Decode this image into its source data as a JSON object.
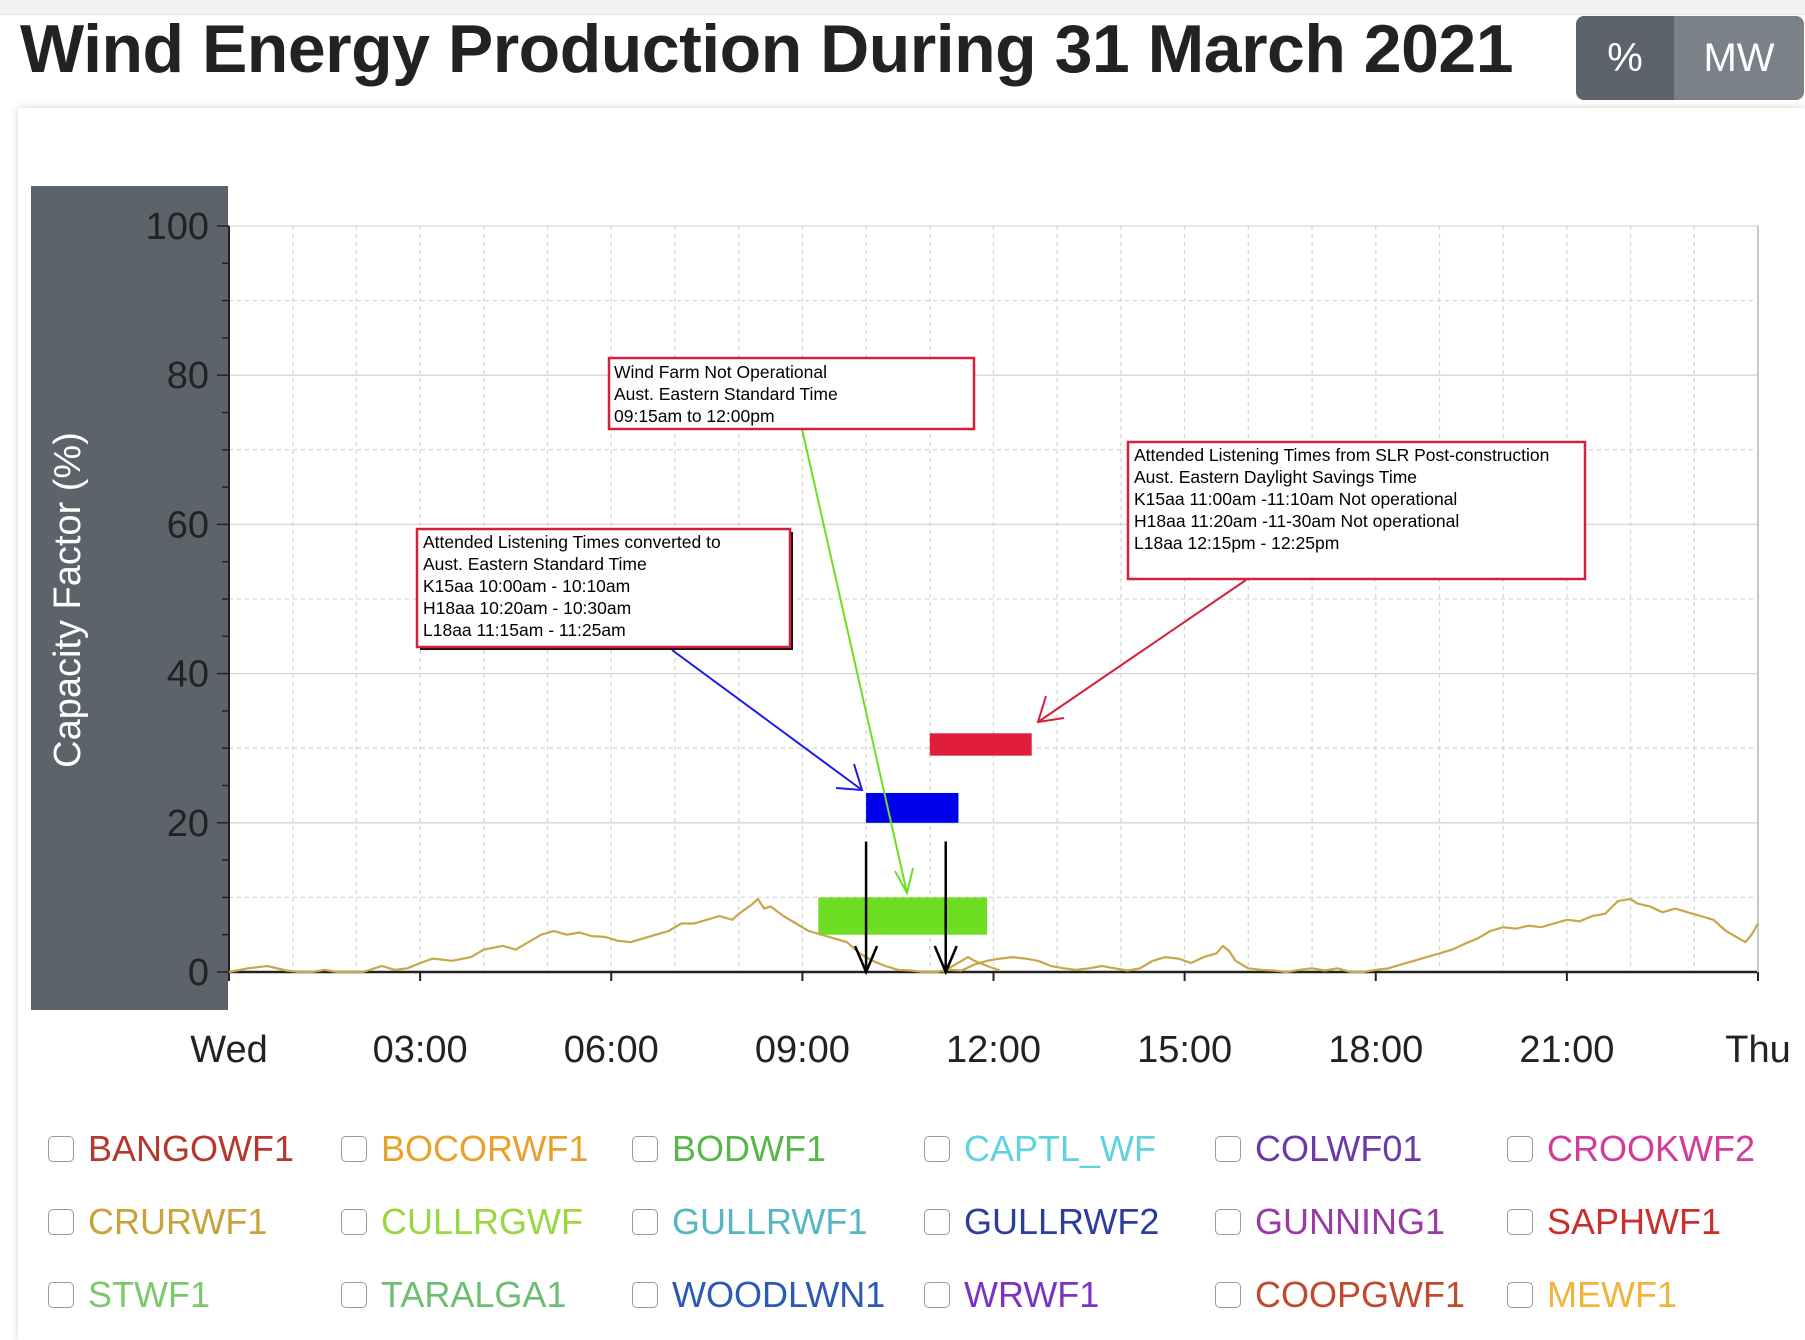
{
  "page": {
    "title": "Wind Energy Production During 31 March 2021",
    "unit_toggle": {
      "percent": "%",
      "mw": "MW",
      "active": "percent"
    }
  },
  "chart_data": {
    "type": "line",
    "title": "Wind Energy Production During 31 March 2021",
    "ylabel": "Capacity Factor (%)",
    "xlabel": "",
    "ylim": [
      0,
      100
    ],
    "y_ticks": [
      0,
      20,
      40,
      60,
      80,
      100
    ],
    "x_ticks": [
      {
        "hour": 0,
        "label": "Wed"
      },
      {
        "hour": 3,
        "label": "03:00"
      },
      {
        "hour": 6,
        "label": "06:00"
      },
      {
        "hour": 9,
        "label": "09:00"
      },
      {
        "hour": 12,
        "label": "12:00"
      },
      {
        "hour": 15,
        "label": "15:00"
      },
      {
        "hour": 18,
        "label": "18:00"
      },
      {
        "hour": 21,
        "label": "21:00"
      },
      {
        "hour": 24,
        "label": "Thu"
      }
    ],
    "grid": true,
    "series": [
      {
        "color": "#c8a64a",
        "points": [
          [
            0,
            0
          ],
          [
            0.3,
            0.5
          ],
          [
            0.6,
            0.8
          ],
          [
            0.9,
            0.2
          ],
          [
            1.1,
            0
          ],
          [
            1.3,
            0
          ],
          [
            1.5,
            0.3
          ],
          [
            1.7,
            0
          ],
          [
            1.9,
            0
          ],
          [
            2.1,
            0
          ],
          [
            2.4,
            0.8
          ],
          [
            2.6,
            0.3
          ],
          [
            2.8,
            0.5
          ],
          [
            3.0,
            1.2
          ],
          [
            3.2,
            1.8
          ],
          [
            3.5,
            1.5
          ],
          [
            3.8,
            2.0
          ],
          [
            4.0,
            3.0
          ],
          [
            4.3,
            3.5
          ],
          [
            4.5,
            3.0
          ],
          [
            4.7,
            4.0
          ],
          [
            4.9,
            5.0
          ],
          [
            5.1,
            5.5
          ],
          [
            5.3,
            5.0
          ],
          [
            5.5,
            5.3
          ],
          [
            5.7,
            4.8
          ],
          [
            5.9,
            4.7
          ],
          [
            6.1,
            4.2
          ],
          [
            6.3,
            4.0
          ],
          [
            6.5,
            4.5
          ],
          [
            6.7,
            5.0
          ],
          [
            6.9,
            5.5
          ],
          [
            7.1,
            6.5
          ],
          [
            7.3,
            6.5
          ],
          [
            7.5,
            7.0
          ],
          [
            7.7,
            7.5
          ],
          [
            7.9,
            7.0
          ],
          [
            8.0,
            7.8
          ],
          [
            8.2,
            9.0
          ],
          [
            8.3,
            9.8
          ],
          [
            8.4,
            8.5
          ],
          [
            8.5,
            8.8
          ],
          [
            8.7,
            7.5
          ],
          [
            8.9,
            6.5
          ],
          [
            9.1,
            5.5
          ],
          [
            9.3,
            5.0
          ],
          [
            9.5,
            4.5
          ],
          [
            9.7,
            4.0
          ],
          [
            9.9,
            2.5
          ],
          [
            10.1,
            1.5
          ],
          [
            10.3,
            0.8
          ],
          [
            10.5,
            0.3
          ],
          [
            10.7,
            0.2
          ],
          [
            10.9,
            0
          ],
          [
            11.1,
            0
          ],
          [
            11.3,
            0.3
          ],
          [
            11.5,
            0.2
          ],
          [
            11.7,
            1.0
          ],
          [
            11.9,
            1.5
          ],
          [
            12.1,
            1.8
          ],
          [
            12.3,
            2.0
          ],
          [
            12.5,
            1.8
          ],
          [
            12.7,
            1.5
          ],
          [
            12.9,
            0.8
          ],
          [
            13.1,
            0.5
          ],
          [
            13.3,
            0.3
          ],
          [
            13.5,
            0.5
          ],
          [
            13.7,
            0.8
          ],
          [
            13.9,
            0.5
          ],
          [
            14.1,
            0.2
          ],
          [
            14.3,
            0.5
          ],
          [
            14.5,
            1.5
          ],
          [
            14.7,
            2.0
          ],
          [
            14.9,
            1.8
          ],
          [
            15.1,
            1.2
          ],
          [
            15.3,
            2.0
          ],
          [
            15.5,
            2.5
          ],
          [
            15.6,
            3.5
          ],
          [
            15.7,
            2.8
          ],
          [
            15.8,
            1.5
          ],
          [
            16.0,
            0.5
          ],
          [
            16.2,
            0.3
          ],
          [
            16.4,
            0.2
          ],
          [
            16.6,
            0
          ],
          [
            16.8,
            0.3
          ],
          [
            17.0,
            0.5
          ],
          [
            17.2,
            0.2
          ],
          [
            17.4,
            0.5
          ],
          [
            17.6,
            0
          ],
          [
            17.8,
            0
          ],
          [
            18.0,
            0.3
          ],
          [
            18.2,
            0.5
          ],
          [
            18.4,
            1.0
          ],
          [
            18.6,
            1.5
          ],
          [
            18.8,
            2.0
          ],
          [
            19.0,
            2.5
          ],
          [
            19.2,
            3.0
          ],
          [
            19.4,
            3.8
          ],
          [
            19.6,
            4.5
          ],
          [
            19.8,
            5.5
          ],
          [
            20.0,
            6.0
          ],
          [
            20.2,
            5.8
          ],
          [
            20.4,
            6.2
          ],
          [
            20.6,
            6.0
          ],
          [
            20.8,
            6.5
          ],
          [
            21.0,
            7.0
          ],
          [
            21.2,
            6.8
          ],
          [
            21.4,
            7.5
          ],
          [
            21.6,
            7.8
          ],
          [
            21.8,
            9.5
          ],
          [
            22.0,
            9.8
          ],
          [
            22.1,
            9.2
          ],
          [
            22.3,
            8.8
          ],
          [
            22.5,
            8.0
          ],
          [
            22.7,
            8.5
          ],
          [
            22.9,
            8.0
          ],
          [
            23.1,
            7.5
          ],
          [
            23.3,
            7.0
          ],
          [
            23.5,
            5.5
          ],
          [
            23.7,
            4.5
          ],
          [
            23.8,
            4.0
          ],
          [
            23.9,
            5.0
          ],
          [
            24.0,
            6.5
          ]
        ]
      },
      {
        "color": "#c8a64a",
        "points": [
          [
            11.2,
            0
          ],
          [
            11.4,
            1.0
          ],
          [
            11.6,
            2.0
          ],
          [
            11.7,
            1.5
          ],
          [
            11.9,
            0.8
          ],
          [
            12.1,
            0.2
          ]
        ]
      }
    ],
    "period_bars": [
      {
        "name": "not-operational-aest",
        "color": "#6ede22",
        "x_start": 9.25,
        "x_end": 11.9,
        "y_low": 5,
        "y_high": 10
      },
      {
        "name": "listening-aest",
        "color": "#0000ee",
        "x_start": 10.0,
        "x_end": 11.45,
        "y_low": 20,
        "y_high": 24
      },
      {
        "name": "listening-aedt",
        "color": "#e11d3c",
        "x_start": 11.0,
        "x_end": 12.6,
        "y_low": 29,
        "y_high": 32
      }
    ],
    "down_arrows": [
      10.0,
      11.25
    ],
    "annotations": [
      {
        "name": "annotation-not-operational",
        "lines": [
          "Wind Farm Not Operational",
          "Aust. Eastern Standard Time",
          "09:15am to 12:00pm"
        ],
        "arrow_color": "#6ede22"
      },
      {
        "name": "annotation-listening-aest",
        "lines": [
          "Attended Listening Times converted to",
          "Aust. Eastern Standard Time",
          "K15aa 10:00am - 10:10am",
          "H18aa 10:20am - 10:30am",
          "L18aa 11:15am - 11:25am"
        ],
        "arrow_color": "#1a1aee"
      },
      {
        "name": "annotation-listening-aedt",
        "lines": [
          "Attended Listening Times from SLR Post-construction",
          "Aust. Eastern Daylight Savings Time",
          "K15aa 11:00am -11:10am Not operational",
          "H18aa 11:20am -11-30am Not operational",
          "L18aa 12:15pm - 12:25pm"
        ],
        "arrow_color": "#d1213d"
      }
    ]
  },
  "legend": [
    {
      "label": "BANGOWF1",
      "color": "#b5372e"
    },
    {
      "label": "BOCORWF1",
      "color": "#e8a12a"
    },
    {
      "label": "BODWF1",
      "color": "#56b848"
    },
    {
      "label": "CAPTL_WF",
      "color": "#5fd3de"
    },
    {
      "label": "COLWF01",
      "color": "#6b3aa8"
    },
    {
      "label": "CROOKWF2",
      "color": "#d43a9a"
    },
    {
      "label": "CRURWF1",
      "color": "#c8a23a"
    },
    {
      "label": "CULLRGWF",
      "color": "#9bd640"
    },
    {
      "label": "GULLRWF1",
      "color": "#56b7c4"
    },
    {
      "label": "GULLRWF2",
      "color": "#2d3d9e"
    },
    {
      "label": "GUNNING1",
      "color": "#9a3aa6"
    },
    {
      "label": "SAPHWF1",
      "color": "#c9302c"
    },
    {
      "label": "STWF1",
      "color": "#7bc96a"
    },
    {
      "label": "TARALGA1",
      "color": "#6cbf72"
    },
    {
      "label": "WOODLWN1",
      "color": "#2e59b3"
    },
    {
      "label": "WRWF1",
      "color": "#7a33c4"
    },
    {
      "label": "COOPGWF1",
      "color": "#c04a2c"
    },
    {
      "label": "MEWF1",
      "color": "#f0b43a"
    }
  ]
}
